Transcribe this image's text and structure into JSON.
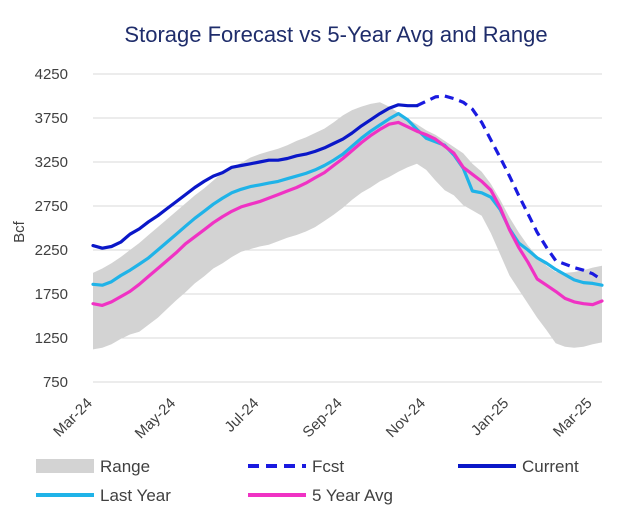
{
  "chart_data": {
    "type": "line",
    "title": "Storage Forecast vs 5-Year Avg and Range",
    "xlabel": "",
    "ylabel": "Bcf",
    "ylim": [
      750,
      4250
    ],
    "yticks": [
      750,
      1250,
      1750,
      2250,
      2750,
      3250,
      3750,
      4250
    ],
    "xlim": [
      0,
      55
    ],
    "xticks": [
      {
        "x": 0,
        "label": "Mar-24"
      },
      {
        "x": 9,
        "label": "May-24"
      },
      {
        "x": 18,
        "label": "Jul-24"
      },
      {
        "x": 27,
        "label": "Sep-24"
      },
      {
        "x": 36,
        "label": "Nov-24"
      },
      {
        "x": 45,
        "label": "Jan-25"
      },
      {
        "x": 54,
        "label": "Mar-25"
      }
    ],
    "grid": true,
    "legend_position": "bottom",
    "x": [
      0,
      1,
      2,
      3,
      4,
      5,
      6,
      7,
      8,
      9,
      10,
      11,
      12,
      13,
      14,
      15,
      16,
      17,
      18,
      19,
      20,
      21,
      22,
      23,
      24,
      25,
      26,
      27,
      28,
      29,
      30,
      31,
      32,
      33,
      34,
      35,
      36,
      37,
      38,
      39,
      40,
      41,
      42,
      43,
      44,
      45,
      46,
      47,
      48,
      49,
      50,
      51,
      52,
      53,
      54,
      55
    ],
    "series": [
      {
        "name": "Range",
        "style": "band",
        "color": "#d3d3d3",
        "low": [
          1120,
          1140,
          1180,
          1240,
          1290,
          1320,
          1400,
          1480,
          1580,
          1680,
          1770,
          1870,
          1950,
          2040,
          2100,
          2170,
          2230,
          2260,
          2290,
          2310,
          2350,
          2390,
          2420,
          2460,
          2510,
          2580,
          2650,
          2730,
          2820,
          2900,
          2960,
          3030,
          3080,
          3140,
          3190,
          3230,
          3160,
          3040,
          2930,
          2870,
          2760,
          2700,
          2640,
          2440,
          2200,
          1960,
          1800,
          1640,
          1480,
          1340,
          1190,
          1150,
          1140,
          1150,
          1180,
          1200
        ],
        "high": [
          1990,
          2040,
          2100,
          2170,
          2250,
          2330,
          2420,
          2510,
          2600,
          2690,
          2780,
          2870,
          2950,
          3040,
          3130,
          3190,
          3240,
          3300,
          3340,
          3370,
          3400,
          3440,
          3490,
          3530,
          3580,
          3630,
          3700,
          3780,
          3840,
          3880,
          3910,
          3930,
          3880,
          3810,
          3740,
          3680,
          3610,
          3560,
          3490,
          3420,
          3350,
          3230,
          3140,
          3000,
          2820,
          2620,
          2450,
          2300,
          2180,
          2070,
          2000,
          1990,
          2000,
          2020,
          2050,
          2070
        ]
      },
      {
        "name": "Fcst",
        "style": "dashed",
        "color": "#1a1ae0",
        "points": [
          [
            35,
            3890
          ],
          [
            36,
            3940
          ],
          [
            37,
            3990
          ],
          [
            38,
            4000
          ],
          [
            39,
            3970
          ],
          [
            40,
            3930
          ],
          [
            41,
            3850
          ],
          [
            42,
            3700
          ],
          [
            43,
            3500
          ],
          [
            44,
            3300
          ],
          [
            45,
            3090
          ],
          [
            46,
            2870
          ],
          [
            47,
            2660
          ],
          [
            48,
            2450
          ],
          [
            49,
            2280
          ],
          [
            50,
            2130
          ],
          [
            51,
            2090
          ],
          [
            52,
            2050
          ],
          [
            53,
            2020
          ],
          [
            54,
            1980
          ],
          [
            55,
            1910
          ]
        ]
      },
      {
        "name": "Current",
        "style": "solid",
        "color": "#0a17c8",
        "points": [
          [
            0,
            2300
          ],
          [
            1,
            2270
          ],
          [
            2,
            2290
          ],
          [
            3,
            2340
          ],
          [
            4,
            2430
          ],
          [
            5,
            2490
          ],
          [
            6,
            2570
          ],
          [
            7,
            2640
          ],
          [
            8,
            2720
          ],
          [
            9,
            2800
          ],
          [
            10,
            2880
          ],
          [
            11,
            2960
          ],
          [
            12,
            3030
          ],
          [
            13,
            3090
          ],
          [
            14,
            3130
          ],
          [
            15,
            3190
          ],
          [
            16,
            3210
          ],
          [
            17,
            3230
          ],
          [
            18,
            3250
          ],
          [
            19,
            3270
          ],
          [
            20,
            3270
          ],
          [
            21,
            3290
          ],
          [
            22,
            3320
          ],
          [
            23,
            3340
          ],
          [
            24,
            3370
          ],
          [
            25,
            3410
          ],
          [
            26,
            3460
          ],
          [
            27,
            3510
          ],
          [
            28,
            3580
          ],
          [
            29,
            3660
          ],
          [
            30,
            3730
          ],
          [
            31,
            3800
          ],
          [
            32,
            3860
          ],
          [
            33,
            3900
          ],
          [
            34,
            3890
          ],
          [
            35,
            3890
          ]
        ]
      },
      {
        "name": "Last Year",
        "style": "solid",
        "color": "#1fb3e8",
        "points": [
          [
            0,
            1860
          ],
          [
            1,
            1850
          ],
          [
            2,
            1890
          ],
          [
            3,
            1960
          ],
          [
            4,
            2020
          ],
          [
            5,
            2090
          ],
          [
            6,
            2160
          ],
          [
            7,
            2250
          ],
          [
            8,
            2340
          ],
          [
            9,
            2430
          ],
          [
            10,
            2520
          ],
          [
            11,
            2610
          ],
          [
            12,
            2690
          ],
          [
            13,
            2770
          ],
          [
            14,
            2840
          ],
          [
            15,
            2900
          ],
          [
            16,
            2940
          ],
          [
            17,
            2970
          ],
          [
            18,
            2990
          ],
          [
            19,
            3010
          ],
          [
            20,
            3030
          ],
          [
            21,
            3060
          ],
          [
            22,
            3090
          ],
          [
            23,
            3120
          ],
          [
            24,
            3160
          ],
          [
            25,
            3210
          ],
          [
            26,
            3270
          ],
          [
            27,
            3340
          ],
          [
            28,
            3430
          ],
          [
            29,
            3520
          ],
          [
            30,
            3600
          ],
          [
            31,
            3670
          ],
          [
            32,
            3740
          ],
          [
            33,
            3800
          ],
          [
            34,
            3730
          ],
          [
            35,
            3620
          ],
          [
            36,
            3520
          ],
          [
            37,
            3480
          ],
          [
            38,
            3440
          ],
          [
            39,
            3330
          ],
          [
            40,
            3180
          ],
          [
            41,
            2920
          ],
          [
            42,
            2900
          ],
          [
            43,
            2850
          ],
          [
            44,
            2710
          ],
          [
            45,
            2490
          ],
          [
            46,
            2330
          ],
          [
            47,
            2250
          ],
          [
            48,
            2160
          ],
          [
            49,
            2100
          ],
          [
            50,
            2030
          ],
          [
            51,
            1970
          ],
          [
            52,
            1910
          ],
          [
            53,
            1880
          ],
          [
            54,
            1870
          ],
          [
            55,
            1850
          ]
        ]
      },
      {
        "name": "5 Year Avg",
        "style": "solid",
        "color": "#f032c4",
        "points": [
          [
            0,
            1640
          ],
          [
            1,
            1620
          ],
          [
            2,
            1660
          ],
          [
            3,
            1720
          ],
          [
            4,
            1780
          ],
          [
            5,
            1860
          ],
          [
            6,
            1950
          ],
          [
            7,
            2040
          ],
          [
            8,
            2130
          ],
          [
            9,
            2220
          ],
          [
            10,
            2320
          ],
          [
            11,
            2400
          ],
          [
            12,
            2480
          ],
          [
            13,
            2560
          ],
          [
            14,
            2630
          ],
          [
            15,
            2690
          ],
          [
            16,
            2740
          ],
          [
            17,
            2770
          ],
          [
            18,
            2800
          ],
          [
            19,
            2840
          ],
          [
            20,
            2880
          ],
          [
            21,
            2920
          ],
          [
            22,
            2960
          ],
          [
            23,
            3010
          ],
          [
            24,
            3070
          ],
          [
            25,
            3130
          ],
          [
            26,
            3210
          ],
          [
            27,
            3290
          ],
          [
            28,
            3380
          ],
          [
            29,
            3470
          ],
          [
            30,
            3550
          ],
          [
            31,
            3620
          ],
          [
            32,
            3680
          ],
          [
            33,
            3700
          ],
          [
            34,
            3650
          ],
          [
            35,
            3600
          ],
          [
            36,
            3560
          ],
          [
            37,
            3510
          ],
          [
            38,
            3430
          ],
          [
            39,
            3350
          ],
          [
            40,
            3190
          ],
          [
            41,
            3110
          ],
          [
            42,
            3030
          ],
          [
            43,
            2930
          ],
          [
            44,
            2730
          ],
          [
            45,
            2480
          ],
          [
            46,
            2280
          ],
          [
            47,
            2110
          ],
          [
            48,
            1920
          ],
          [
            49,
            1850
          ],
          [
            50,
            1780
          ],
          [
            51,
            1700
          ],
          [
            52,
            1660
          ],
          [
            53,
            1640
          ],
          [
            54,
            1630
          ],
          [
            55,
            1670
          ]
        ]
      }
    ]
  }
}
